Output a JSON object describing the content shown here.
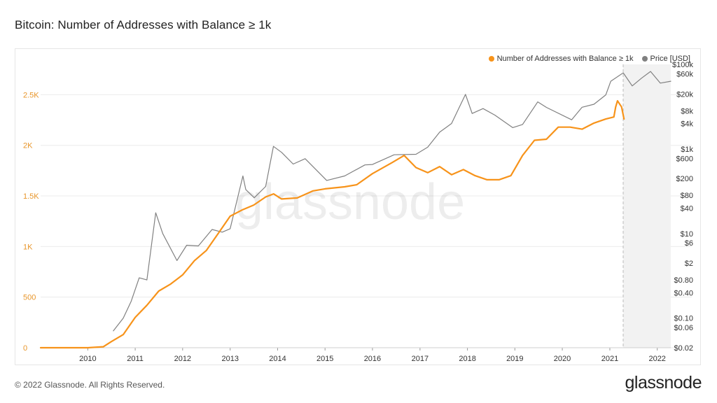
{
  "header": {
    "title": "Bitcoin: Number of Addresses with Balance ≥ 1k"
  },
  "footer": {
    "copyright": "© 2022 Glassnode. All Rights Reserved.",
    "brand": "glassnode"
  },
  "watermark": "glassnode",
  "colors": {
    "addresses": "#f7931a",
    "price": "#808080",
    "left_axis": "#e8962b"
  },
  "legend": [
    {
      "name": "Number of Addresses with Balance ≥ 1k",
      "color": "#f7931a"
    },
    {
      "name": "Price [USD]",
      "color": "#808080"
    }
  ],
  "chart_data": {
    "type": "line",
    "title": "Bitcoin: Number of Addresses with Balance ≥ 1k",
    "x_ticks": [
      "2010",
      "2011",
      "2012",
      "2013",
      "2014",
      "2015",
      "2016",
      "2017",
      "2018",
      "2019",
      "2020",
      "2021",
      "2022"
    ],
    "y_left_ticks": [
      "0",
      "500",
      "1K",
      "1.5K",
      "2K",
      "2.5K"
    ],
    "y_left_range": [
      0,
      2800
    ],
    "y_right_ticks": [
      "$0.02",
      "$0.06",
      "$0.10",
      "$0.40",
      "$0.80",
      "$2",
      "$6",
      "$10",
      "$40",
      "$80",
      "$200",
      "$600",
      "$1k",
      "$4k",
      "$8k",
      "$20k",
      "$60k",
      "$100k"
    ],
    "y_right_scale": "log",
    "y_right_range": [
      0.02,
      100000
    ],
    "x_range": [
      "2009-01-03",
      "2022-04-15"
    ],
    "legend_position": "top-right",
    "series": [
      {
        "name": "Number of Addresses with Balance ≥ 1k",
        "axis": "left",
        "x": [
          "2009-01-03",
          "2009-07-01",
          "2010-01-01",
          "2010-05-01",
          "2010-07-01",
          "2010-10-01",
          "2011-01-01",
          "2011-04-01",
          "2011-07-01",
          "2011-10-01",
          "2012-01-01",
          "2012-04-01",
          "2012-07-01",
          "2012-10-01",
          "2013-01-01",
          "2013-04-01",
          "2013-07-01",
          "2013-10-01",
          "2013-12-01",
          "2014-02-01",
          "2014-06-01",
          "2014-10-01",
          "2015-01-01",
          "2015-06-01",
          "2015-09-01",
          "2016-01-01",
          "2016-06-01",
          "2016-09-01",
          "2016-12-01",
          "2017-03-01",
          "2017-06-01",
          "2017-09-01",
          "2017-12-01",
          "2018-03-01",
          "2018-06-01",
          "2018-09-01",
          "2018-12-01",
          "2019-03-01",
          "2019-06-01",
          "2019-09-01",
          "2019-12-01",
          "2020-03-01",
          "2020-06-01",
          "2020-09-01",
          "2020-12-01",
          "2021-02-01",
          "2021-02-15",
          "2021-03-01",
          "2021-04-01",
          "2021-04-20"
        ],
        "y": [
          0,
          0,
          0,
          10,
          60,
          130,
          300,
          420,
          560,
          630,
          720,
          860,
          960,
          1130,
          1300,
          1360,
          1410,
          1490,
          1520,
          1470,
          1480,
          1550,
          1570,
          1590,
          1610,
          1720,
          1830,
          1900,
          1780,
          1730,
          1790,
          1710,
          1760,
          1700,
          1660,
          1660,
          1700,
          1900,
          2050,
          2060,
          2180,
          2180,
          2160,
          2220,
          2260,
          2280,
          2380,
          2440,
          2380,
          2260
        ]
      },
      {
        "name": "Price [USD]",
        "axis": "right",
        "x": [
          "2010-07-17",
          "2010-10-01",
          "2010-12-01",
          "2011-02-01",
          "2011-04-01",
          "2011-06-08",
          "2011-08-01",
          "2011-11-18",
          "2012-02-01",
          "2012-05-01",
          "2012-08-15",
          "2012-11-01",
          "2013-01-01",
          "2013-04-09",
          "2013-05-01",
          "2013-07-05",
          "2013-10-01",
          "2013-11-30",
          "2014-02-01",
          "2014-05-01",
          "2014-08-01",
          "2015-01-14",
          "2015-06-01",
          "2015-11-04",
          "2016-01-01",
          "2016-06-16",
          "2016-12-01",
          "2017-03-01",
          "2017-06-01",
          "2017-09-01",
          "2017-12-17",
          "2018-02-06",
          "2018-05-01",
          "2018-08-01",
          "2018-12-15",
          "2019-03-01",
          "2019-06-26",
          "2019-09-01",
          "2020-03-13",
          "2020-06-01",
          "2020-09-01",
          "2020-12-01",
          "2021-01-08",
          "2021-04-14",
          "2021-06-22",
          "2021-09-01",
          "2021-11-10",
          "2022-01-24",
          "2022-04-15"
        ],
        "y": [
          0.05,
          0.1,
          0.25,
          0.9,
          0.8,
          31,
          10,
          2.3,
          5.3,
          5.1,
          12.5,
          10.8,
          13,
          230,
          110,
          70,
          130,
          1150,
          830,
          440,
          590,
          180,
          230,
          420,
          430,
          730,
          750,
          1100,
          2500,
          4000,
          19500,
          6900,
          9000,
          6300,
          3200,
          3800,
          13000,
          9600,
          4900,
          9700,
          11400,
          19000,
          40000,
          63000,
          31000,
          47000,
          68000,
          36000,
          40000
        ]
      }
    ]
  }
}
